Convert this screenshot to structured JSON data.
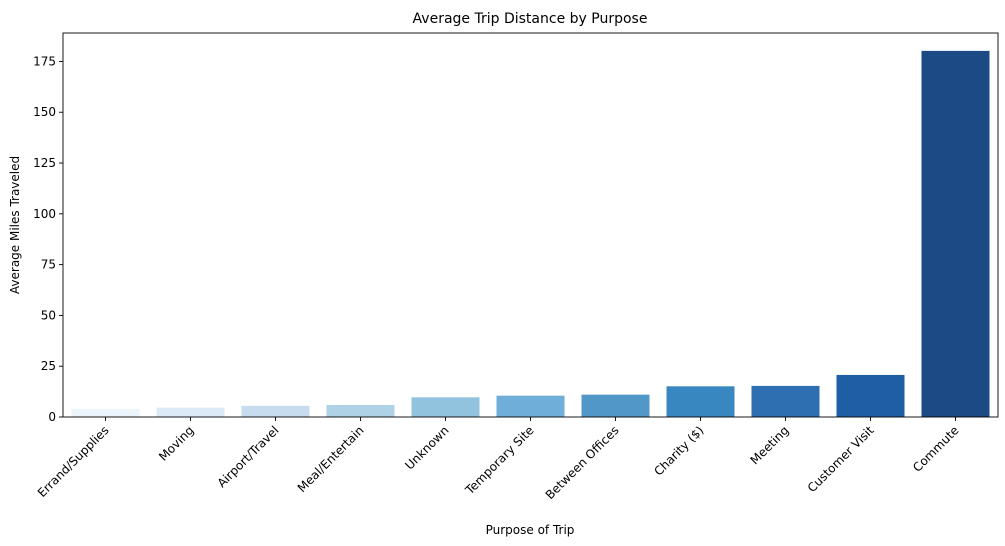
{
  "chart_data": {
    "type": "bar",
    "title": "Average Trip Distance by Purpose",
    "xlabel": "Purpose of Trip",
    "ylabel": "Average Miles Traveled",
    "categories": [
      "Errand/Supplies",
      "Moving",
      "Airport/Travel",
      "Meal/Entertain",
      "Unknown",
      "Temporary Site",
      "Between Offices",
      "Charity ($)",
      "Meeting",
      "Customer Visit",
      "Commute"
    ],
    "values": [
      3.9,
      4.6,
      5.5,
      5.9,
      9.7,
      10.5,
      11.0,
      15.1,
      15.3,
      20.7,
      180.2
    ],
    "colors": [
      "#ebf3fb",
      "#dce9f6",
      "#c8dcef",
      "#b0d2e7",
      "#91c3de",
      "#6eaed8",
      "#5198c8",
      "#3987c0",
      "#2e6fb1",
      "#1f5ea4",
      "#1b4a84"
    ],
    "yticks": [
      "0",
      "25",
      "50",
      "75",
      "100",
      "125",
      "150",
      "175"
    ],
    "ylim": [
      0,
      189
    ],
    "grid": false,
    "legend": "none"
  }
}
